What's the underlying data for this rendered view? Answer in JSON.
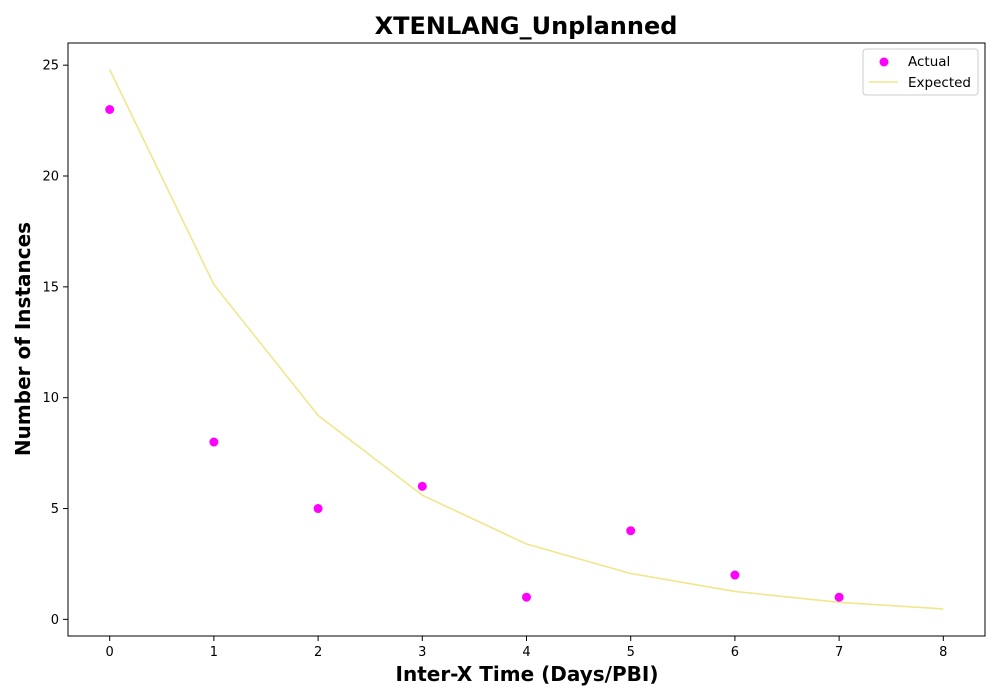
{
  "chart_data": {
    "type": "scatter",
    "title": "XTENLANG_Unplanned",
    "xlabel": "Inter-X Time (Days/PBI)",
    "ylabel": "Number of Instances",
    "xlim": [
      -0.4,
      8.4
    ],
    "ylim": [
      -0.75,
      26
    ],
    "x_ticks": [
      0,
      1,
      2,
      3,
      4,
      5,
      6,
      7,
      8
    ],
    "y_ticks": [
      0,
      5,
      10,
      15,
      20,
      25
    ],
    "grid": false,
    "legend_position": "top-right",
    "series": [
      {
        "name": "Actual",
        "kind": "scatter",
        "color": "#ff00ff",
        "x": [
          0,
          1,
          2,
          3,
          4,
          5,
          6,
          7
        ],
        "y": [
          23,
          8,
          5,
          6,
          1,
          4,
          2,
          1
        ]
      },
      {
        "name": "Expected",
        "kind": "line",
        "color": "#f0e68c",
        "x": [
          0,
          1,
          2,
          3,
          4,
          5,
          6,
          7,
          8
        ],
        "y": [
          24.8,
          15.1,
          9.2,
          5.6,
          3.4,
          2.07,
          1.26,
          0.77,
          0.47
        ]
      }
    ]
  }
}
